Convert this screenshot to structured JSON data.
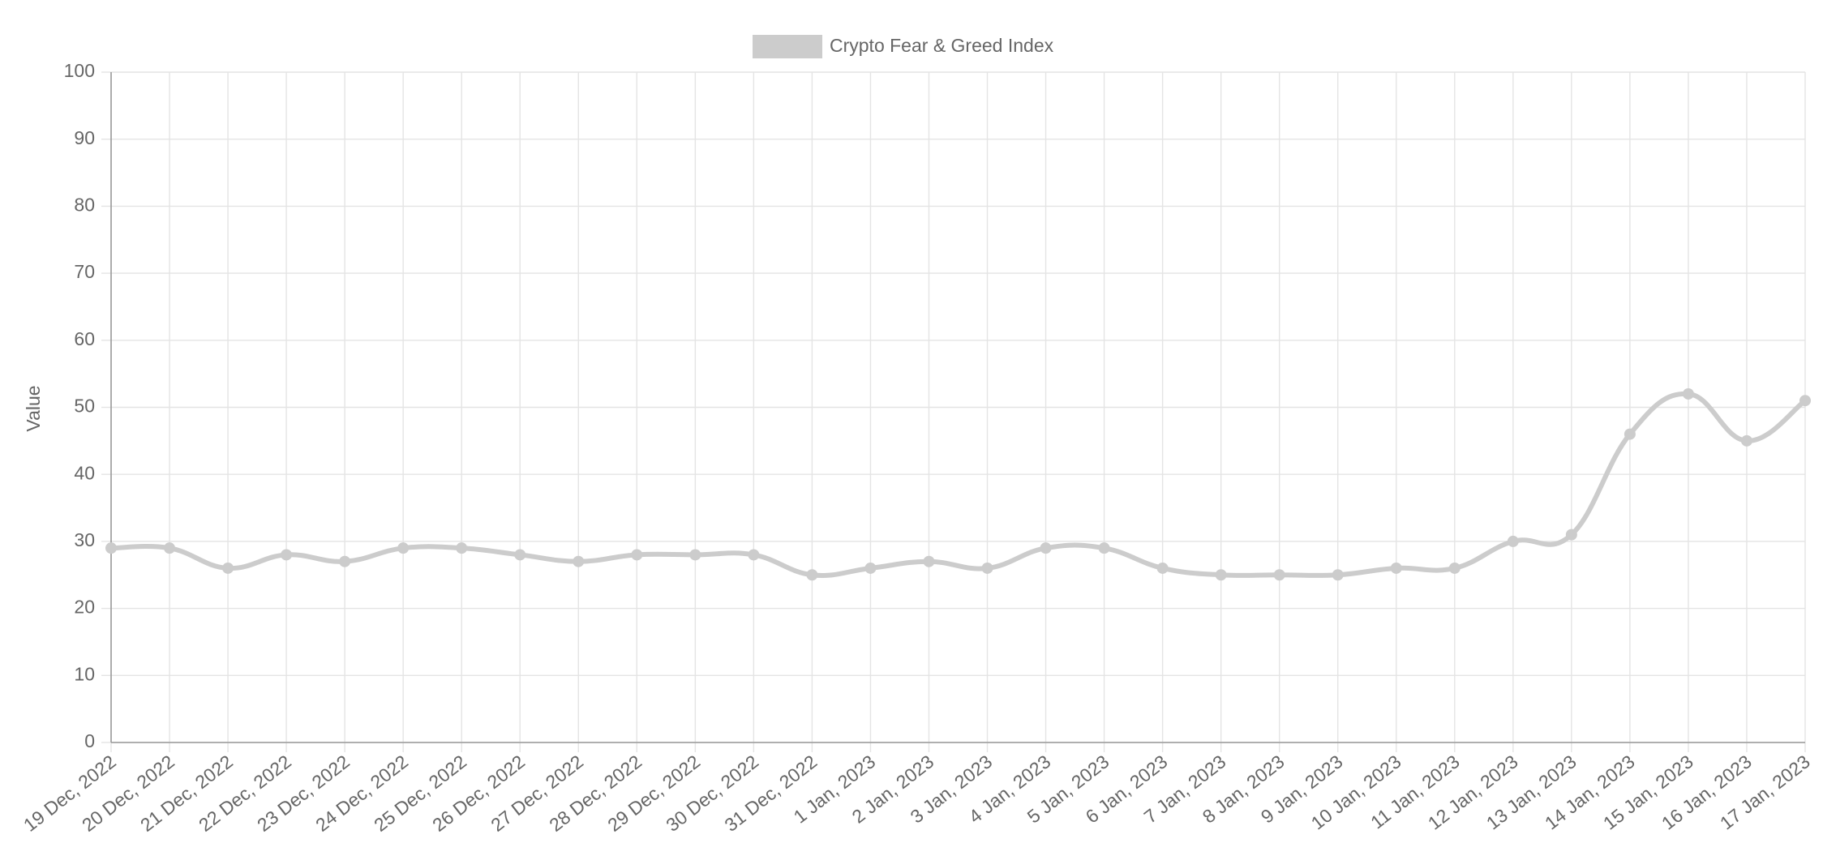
{
  "chart_data": {
    "type": "line",
    "y_label": "Value",
    "categories": [
      "19 Dec, 2022",
      "20 Dec, 2022",
      "21 Dec, 2022",
      "22 Dec, 2022",
      "23 Dec, 2022",
      "24 Dec, 2022",
      "25 Dec, 2022",
      "26 Dec, 2022",
      "27 Dec, 2022",
      "28 Dec, 2022",
      "29 Dec, 2022",
      "30 Dec, 2022",
      "31 Dec, 2022",
      "1 Jan, 2023",
      "2 Jan, 2023",
      "3 Jan, 2023",
      "4 Jan, 2023",
      "5 Jan, 2023",
      "6 Jan, 2023",
      "7 Jan, 2023",
      "8 Jan, 2023",
      "9 Jan, 2023",
      "10 Jan, 2023",
      "11 Jan, 2023",
      "12 Jan, 2023",
      "13 Jan, 2023",
      "14 Jan, 2023",
      "15 Jan, 2023",
      "16 Jan, 2023",
      "17 Jan, 2023"
    ],
    "series": [
      {
        "name": "Crypto Fear & Greed Index",
        "color": "#cccccc",
        "values": [
          29,
          29,
          26,
          28,
          27,
          29,
          29,
          28,
          27,
          28,
          28,
          28,
          25,
          26,
          27,
          26,
          29,
          29,
          26,
          25,
          25,
          25,
          26,
          26,
          30,
          31,
          46,
          52,
          45,
          51
        ]
      }
    ],
    "ylim": [
      0,
      100
    ],
    "yticks": [
      0,
      10,
      20,
      30,
      40,
      50,
      60,
      70,
      80,
      90,
      100
    ],
    "grid": true,
    "legend": "top"
  }
}
